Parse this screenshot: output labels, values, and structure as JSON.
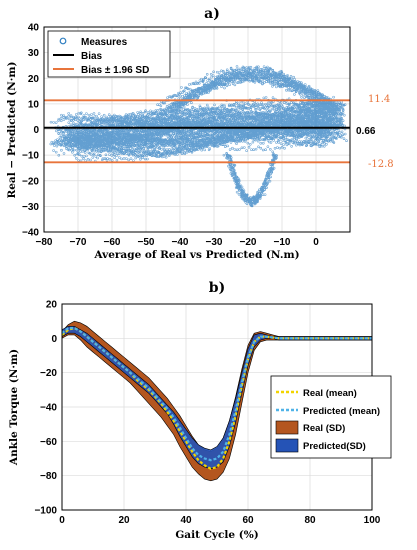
{
  "chart_data": [
    {
      "panel": "a)",
      "type": "scatter",
      "xlabel": "Average of Real vs Predicted (N.m)",
      "ylabel": "Real − Predicted (N·m)",
      "xlim": [
        -80,
        10
      ],
      "ylim": [
        -40,
        40
      ],
      "xticks": [
        -80,
        -70,
        -60,
        -50,
        -40,
        -30,
        -20,
        -10,
        0
      ],
      "yticks": [
        -40,
        -30,
        -20,
        -10,
        0,
        10,
        20,
        30,
        40
      ],
      "grid": true,
      "legend_position": "top-left",
      "legend": [
        "Measures",
        "Bias",
        "Bias ± 1.96 SD"
      ],
      "bias": 0.66,
      "upper_loa": 11.4,
      "lower_loa": -12.8,
      "bias_label": "0.66",
      "upper_label": "11.4",
      "lower_label": "-12.8",
      "colors": {
        "measures": "#2f7fc1",
        "bias": "#000000",
        "loa": "#e8743b"
      }
    },
    {
      "panel": "b)",
      "type": "line",
      "xlabel": "Gait Cycle (%)",
      "ylabel": "Ankle Torque (N·m)",
      "xlim": [
        0,
        100
      ],
      "ylim": [
        -100,
        20
      ],
      "xticks": [
        0,
        20,
        40,
        60,
        80,
        100
      ],
      "yticks": [
        -100,
        -80,
        -60,
        -40,
        -20,
        0,
        20
      ],
      "grid": true,
      "legend_position": "right",
      "legend": [
        "Real (mean)",
        "Predicted (mean)",
        "Real (SD)",
        "Predicted(SD)"
      ],
      "x": [
        0,
        2,
        4,
        6,
        8,
        10,
        12,
        14,
        16,
        18,
        20,
        22,
        24,
        26,
        28,
        30,
        32,
        34,
        36,
        38,
        40,
        42,
        44,
        46,
        48,
        50,
        52,
        54,
        56,
        58,
        60,
        62,
        64,
        66,
        68,
        70,
        75,
        80,
        85,
        90,
        95,
        100
      ],
      "series": [
        {
          "name": "Real (mean)",
          "values": [
            2,
            5,
            6,
            4,
            1,
            -2,
            -5,
            -8,
            -11,
            -14,
            -17,
            -20,
            -24,
            -27,
            -30,
            -34,
            -38,
            -43,
            -48,
            -54,
            -60,
            -66,
            -71,
            -74,
            -76,
            -75,
            -70,
            -60,
            -45,
            -28,
            -12,
            -2,
            1,
            1,
            0.5,
            0,
            0,
            0,
            0,
            0,
            0,
            0
          ]
        },
        {
          "name": "Predicted (mean)",
          "values": [
            3,
            6,
            6,
            4,
            1,
            -2,
            -5,
            -8,
            -11,
            -14,
            -17,
            -20,
            -23,
            -26,
            -29,
            -33,
            -37,
            -41,
            -46,
            -52,
            -58,
            -64,
            -68,
            -70,
            -71,
            -70,
            -66,
            -56,
            -42,
            -26,
            -11,
            -2,
            1,
            1,
            0.5,
            0,
            0,
            0,
            0,
            0,
            0,
            0
          ]
        }
      ],
      "sd": {
        "real": {
          "upper": [
            4,
            8,
            10,
            9,
            7,
            4,
            1,
            -2,
            -5,
            -8,
            -11,
            -14,
            -17,
            -20,
            -23,
            -27,
            -31,
            -35,
            -40,
            -45,
            -51,
            -57,
            -62,
            -65,
            -66,
            -64,
            -58,
            -48,
            -34,
            -18,
            -4,
            3,
            4,
            3,
            2,
            1,
            1,
            1,
            1,
            1,
            1,
            1
          ],
          "lower": [
            0,
            2,
            2,
            -1,
            -5,
            -8,
            -11,
            -14,
            -17,
            -20,
            -23,
            -26,
            -30,
            -34,
            -38,
            -42,
            -46,
            -51,
            -56,
            -63,
            -69,
            -75,
            -79,
            -82,
            -83,
            -82,
            -78,
            -70,
            -56,
            -38,
            -20,
            -7,
            -2,
            -1,
            -1,
            -1,
            -1,
            -1,
            -1,
            -1,
            -1,
            -1
          ]
        },
        "predicted": {
          "upper": [
            5,
            7,
            7,
            5,
            3,
            0,
            -3,
            -6,
            -9,
            -12,
            -15,
            -18,
            -21,
            -24,
            -27,
            -31,
            -35,
            -39,
            -43,
            -48,
            -53,
            -58,
            -62,
            -64,
            -65,
            -63,
            -58,
            -48,
            -35,
            -20,
            -6,
            2,
            3,
            2,
            1,
            1,
            1,
            1,
            1,
            1,
            1,
            1
          ],
          "lower": [
            1,
            3,
            3,
            1,
            -2,
            -5,
            -8,
            -11,
            -14,
            -17,
            -20,
            -23,
            -26,
            -29,
            -32,
            -36,
            -40,
            -44,
            -50,
            -57,
            -63,
            -69,
            -73,
            -75,
            -76,
            -75,
            -72,
            -63,
            -49,
            -32,
            -16,
            -5,
            -1,
            0,
            0,
            -1,
            -1,
            -1,
            -1,
            -1,
            -1,
            -1
          ]
        }
      },
      "colors": {
        "real_mean": "#f2d400",
        "predicted_mean": "#4fb3e8",
        "real_sd": "#b4561f",
        "predicted_sd": "#2553b6"
      }
    }
  ]
}
